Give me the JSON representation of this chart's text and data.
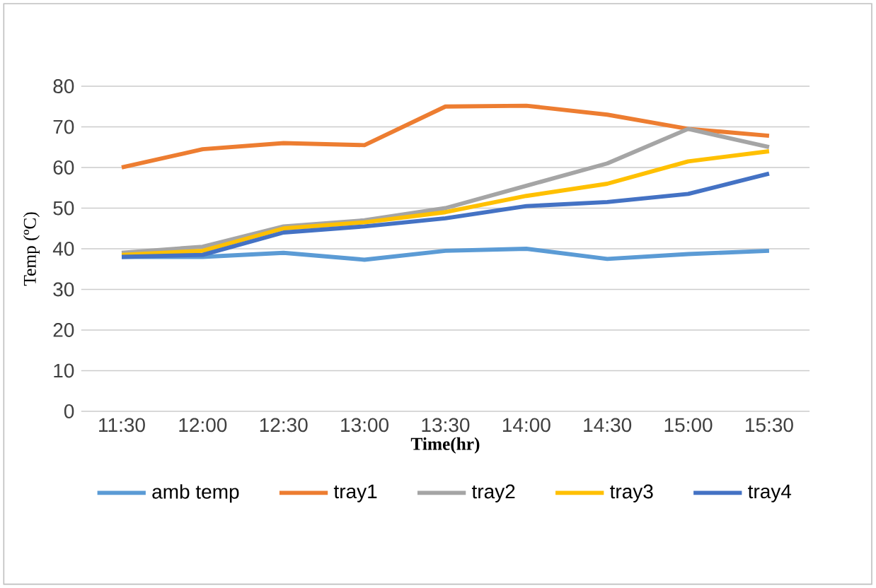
{
  "chart_data": {
    "type": "line",
    "xlabel": "Time(hr)",
    "ylabel": "Temp (ºC)",
    "categories": [
      "11:30",
      "12:00",
      "12:30",
      "13:00",
      "13:30",
      "14:00",
      "14:30",
      "15:00",
      "15:30"
    ],
    "series": [
      {
        "name": "amb temp",
        "color": "#5b9bd5",
        "values": [
          38,
          38,
          39,
          37.3,
          39.5,
          40,
          37.5,
          38.7,
          39.5
        ]
      },
      {
        "name": "tray1",
        "color": "#ed7d31",
        "values": [
          60,
          64.5,
          66,
          65.5,
          75,
          75.2,
          73,
          69.5,
          67.8
        ]
      },
      {
        "name": "tray2",
        "color": "#a5a5a5",
        "values": [
          39,
          40.5,
          45.5,
          47,
          50,
          55.5,
          61,
          69.5,
          65
        ]
      },
      {
        "name": "tray3",
        "color": "#ffc000",
        "values": [
          38.5,
          39.5,
          45,
          46.5,
          49,
          53,
          56,
          61.5,
          64
        ]
      },
      {
        "name": "tray4",
        "color": "#4472c4",
        "values": [
          38,
          38.5,
          44,
          45.5,
          47.5,
          50.5,
          51.5,
          53.5,
          58.5
        ]
      }
    ],
    "ylim": [
      0,
      80
    ],
    "yticks": [
      0,
      10,
      20,
      30,
      40,
      50,
      60,
      70,
      80
    ],
    "grid": "y",
    "legend": "bottom",
    "marker": "none",
    "line_style": "solid"
  }
}
